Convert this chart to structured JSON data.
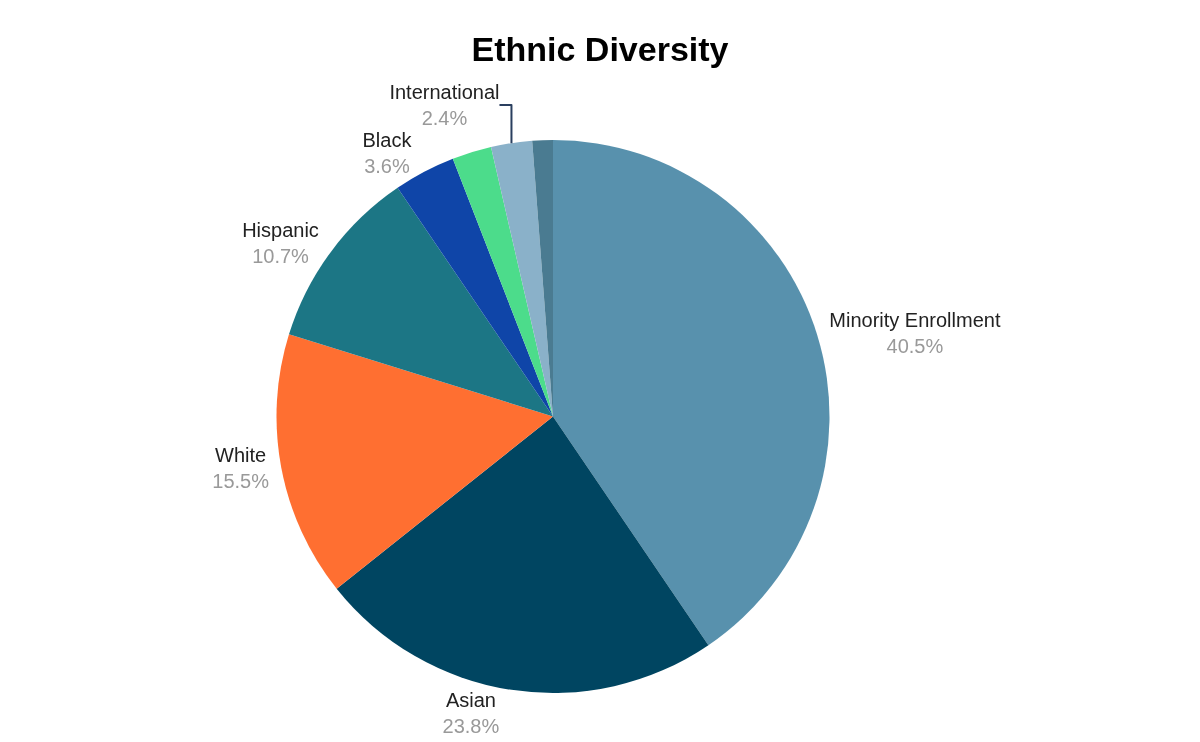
{
  "chart_data": {
    "type": "pie",
    "title": "Ethnic Diversity",
    "categories": [
      "Minority Enrollment",
      "Asian",
      "White",
      "Hispanic",
      "Black",
      null,
      "International",
      null
    ],
    "values": [
      40.5,
      23.8,
      15.5,
      10.7,
      3.6,
      2.3,
      2.4,
      1.2
    ],
    "value_labels": [
      "40.5%",
      "23.8%",
      "15.5%",
      "10.7%",
      "3.6%",
      null,
      "2.4%",
      null
    ],
    "colors": [
      "#5891ad",
      "#004561",
      "#ff6f31",
      "#1c7685",
      "#0f45a8",
      "#4cdc8b",
      "#8ab1c9",
      "#4a7b91"
    ],
    "legend": false
  }
}
